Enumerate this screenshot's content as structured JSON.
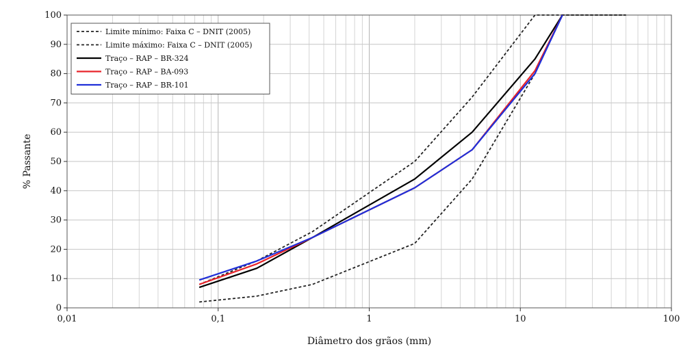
{
  "chart_data": {
    "type": "line",
    "xlabel": "Diâmetro dos grãos (mm)",
    "ylabel": "% Passante",
    "x_scale": "log",
    "xlim": [
      0.01,
      100
    ],
    "ylim": [
      0,
      100
    ],
    "x_ticks": [
      {
        "value": 0.01,
        "label": "0,01"
      },
      {
        "value": 0.1,
        "label": "0,1"
      },
      {
        "value": 1,
        "label": "1"
      },
      {
        "value": 10,
        "label": "10"
      },
      {
        "value": 100,
        "label": "100"
      }
    ],
    "y_ticks": [
      0,
      10,
      20,
      30,
      40,
      50,
      60,
      70,
      80,
      90,
      100
    ],
    "grid": true,
    "legend_position": "top-left",
    "series": [
      {
        "name": "Limite mínimo: Faixa C – DNIT (2005)",
        "color": "#222222",
        "dashed": true,
        "x": [
          0.075,
          0.18,
          0.42,
          2.0,
          4.8,
          12.5,
          19,
          50
        ],
        "y": [
          2,
          4,
          8,
          22,
          44,
          80,
          100,
          100
        ]
      },
      {
        "name": "Limite máximo: Faixa C – DNIT (2005)",
        "color": "#222222",
        "dashed": true,
        "x": [
          0.075,
          0.18,
          0.42,
          2.0,
          4.8,
          12.5,
          19,
          50
        ],
        "y": [
          8,
          16,
          26,
          50,
          72,
          100,
          100,
          100
        ]
      },
      {
        "name": "Traço – RAP – BR-324",
        "color": "#000000",
        "dashed": false,
        "x": [
          0.075,
          0.18,
          0.42,
          2.0,
          4.8,
          12.5,
          19
        ],
        "y": [
          7,
          13.5,
          24,
          44,
          60,
          85,
          100
        ]
      },
      {
        "name": "Traço – RAP – BA-093",
        "color": "#e8232a",
        "dashed": false,
        "x": [
          0.075,
          0.18,
          0.42,
          2.0,
          4.8,
          12.5,
          19
        ],
        "y": [
          8,
          15,
          24,
          41,
          54,
          81,
          100
        ]
      },
      {
        "name": "Traço – RAP – BR-101",
        "color": "#1f2fd8",
        "dashed": false,
        "x": [
          0.075,
          0.18,
          0.42,
          2.0,
          4.8,
          12.5,
          19
        ],
        "y": [
          9.5,
          16,
          24,
          41,
          54,
          80,
          100
        ]
      }
    ]
  }
}
